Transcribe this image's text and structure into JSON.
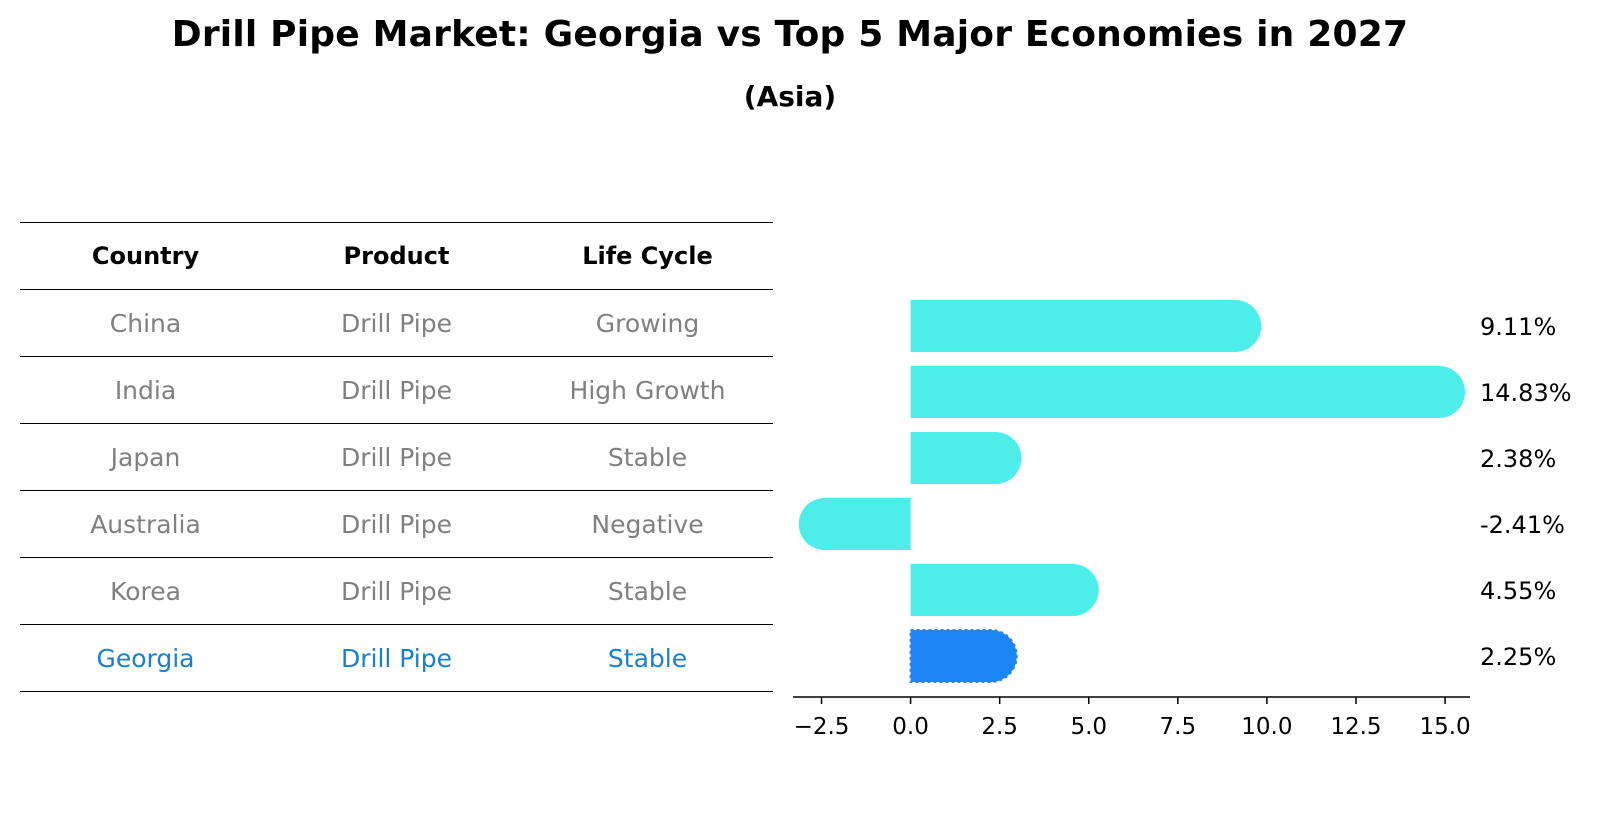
{
  "title": "Drill Pipe Market: Georgia vs Top 5 Major Economies in 2027",
  "subtitle": "(Asia)",
  "table": {
    "headers": [
      "Country",
      "Product",
      "Life Cycle"
    ],
    "rows": [
      {
        "country": "China",
        "product": "Drill Pipe",
        "life_cycle": "Growing"
      },
      {
        "country": "India",
        "product": "Drill Pipe",
        "life_cycle": "High Growth"
      },
      {
        "country": "Japan",
        "product": "Drill Pipe",
        "life_cycle": "Stable"
      },
      {
        "country": "Australia",
        "product": "Drill Pipe",
        "life_cycle": "Negative"
      },
      {
        "country": "Korea",
        "product": "Drill Pipe",
        "life_cycle": "Stable"
      },
      {
        "country": "Georgia",
        "product": "Drill Pipe",
        "life_cycle": "Stable"
      }
    ]
  },
  "colors": {
    "bar": "#4deeea",
    "highlight_bar": "#1a85f5",
    "highlight_text": "#1a7fd0",
    "muted_text": "#808080"
  },
  "chart_data": {
    "type": "bar",
    "orientation": "horizontal",
    "categories": [
      "China",
      "India",
      "Japan",
      "Australia",
      "Korea",
      "Georgia"
    ],
    "values": [
      9.11,
      14.83,
      2.38,
      -2.41,
      4.55,
      2.25
    ],
    "value_labels": [
      "9.11%",
      "14.83%",
      "2.38%",
      "-2.41%",
      "4.55%",
      "2.25%"
    ],
    "highlight": "Georgia",
    "xlim": [
      -3.3,
      15.7
    ],
    "xticks": [
      -2.5,
      0.0,
      2.5,
      5.0,
      7.5,
      10.0,
      12.5,
      15.0
    ],
    "xtick_labels": [
      "−2.5",
      "0.0",
      "2.5",
      "5.0",
      "7.5",
      "10.0",
      "12.5",
      "15.0"
    ],
    "grid": false,
    "xlabel": "",
    "ylabel": ""
  }
}
